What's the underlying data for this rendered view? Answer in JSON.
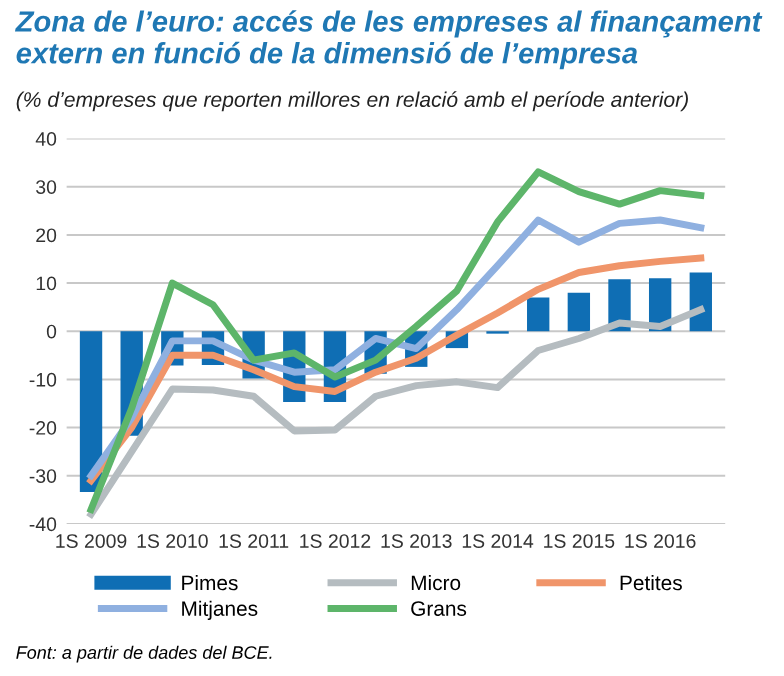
{
  "chart_data": {
    "type": "bar",
    "title": "Zona de l’euro: accés de les empreses al finançament extern en funció de la dimensió de l’empresa",
    "subtitle": "(% d’empreses que reporten millores en relació amb el període anterior)",
    "categories": [
      "1S 2009",
      null,
      "1S 2010",
      null,
      "1S 2011",
      null,
      "1S 2012",
      null,
      "1S 2013",
      null,
      "1S 2014",
      null,
      "1S 2015",
      null,
      "1S 2016",
      null
    ],
    "series": [
      {
        "name": "Pimes",
        "color": "#0f6eb4",
        "values": [
          -33.4,
          -21.7,
          -7.1,
          -7,
          -9.8,
          -14.7,
          -14.7,
          -8.8,
          -7.4,
          -3.5,
          -0.5,
          7,
          8,
          10.8,
          11,
          12.2
        ]
      },
      {
        "name": "Micro",
        "type": "line",
        "color": "#b5bcc0",
        "values": [
          -38,
          -25,
          -12,
          -12.2,
          -13.5,
          -20.7,
          -20.5,
          -13.5,
          -11.3,
          -10.5,
          -11.7,
          -4,
          -1.5,
          1.7,
          1,
          4.5
        ]
      },
      {
        "name": "Petites",
        "type": "line",
        "color": "#f0956a",
        "values": [
          -31,
          -20,
          -5,
          -5,
          -8,
          -11.5,
          -12.5,
          -8.5,
          -5.6,
          -0.8,
          3.8,
          8.7,
          12.2,
          13.6,
          14.5,
          15.2
        ]
      },
      {
        "name": "Mitjanes",
        "type": "line",
        "color": "#8fb0e0",
        "values": [
          -30,
          -18,
          -2,
          -2,
          -6,
          -8.5,
          -8,
          -1.5,
          -3.6,
          4.5,
          13.6,
          23.1,
          18.5,
          22.4,
          23.1,
          21.5
        ]
      },
      {
        "name": "Grans",
        "type": "line",
        "color": "#5db56a",
        "values": [
          -37,
          -16,
          10,
          5.5,
          -6,
          -4.5,
          -9.5,
          -6,
          1,
          8.4,
          22.7,
          33.1,
          29,
          26.4,
          29.2,
          28.2
        ]
      }
    ],
    "ylim": [
      -40,
      40
    ],
    "yticks": [
      -40,
      -30,
      -20,
      -10,
      0,
      10,
      20,
      30,
      40
    ],
    "grid": "y",
    "legend": "bottom",
    "annotations": [
      "Font: a partir de dades del BCE."
    ]
  }
}
